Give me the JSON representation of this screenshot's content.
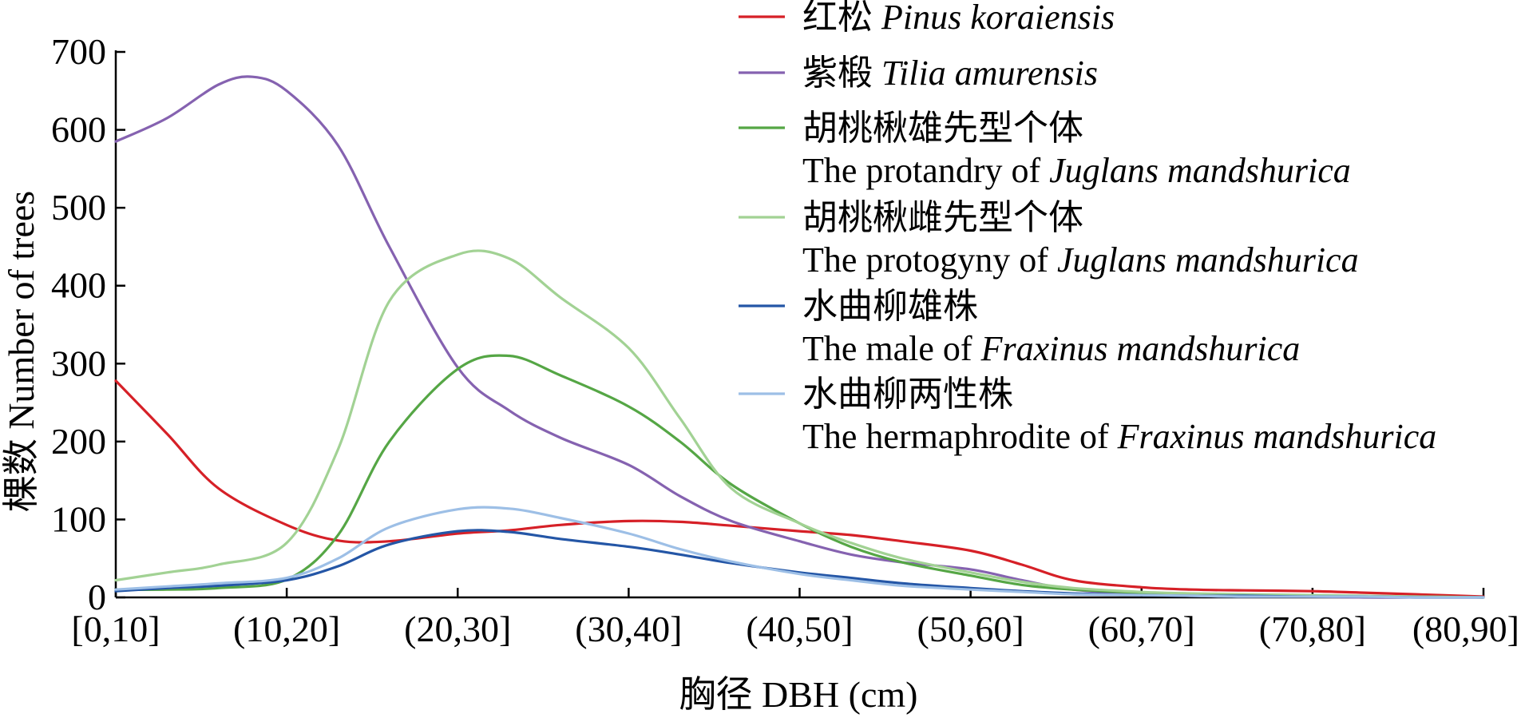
{
  "chart_data": {
    "type": "line",
    "xlabel": "胸径 DBH  (cm)",
    "ylabel": "棵数 Number of trees",
    "ylim": [
      0,
      700
    ],
    "yticks": [
      0,
      100,
      200,
      300,
      400,
      500,
      600,
      700
    ],
    "categories": [
      "[0,10]",
      "(10,20]",
      "(20,30]",
      "(30,40]",
      "(40,50]",
      "(50,60]",
      "(60,70]",
      "(70,80]",
      "(80,90]"
    ],
    "x_positions": [
      0,
      1,
      2,
      3,
      4,
      5,
      6,
      7,
      8
    ],
    "grid": false,
    "legend_position": "top-right",
    "series": [
      {
        "name_cn": "红松",
        "name_parts": [
          {
            "text": "Pinus koraiensis",
            "italic": true
          }
        ],
        "color": "#d62027",
        "x": [
          0,
          0.3,
          0.6,
          1.0,
          1.3,
          1.6,
          2.0,
          2.3,
          2.6,
          3.0,
          3.3,
          3.6,
          4.0,
          4.3,
          4.6,
          5.0,
          5.3,
          5.6,
          6.0,
          6.3,
          6.6,
          7.0,
          7.3,
          7.6,
          8.0
        ],
        "values": [
          278,
          210,
          140,
          93,
          73,
          72,
          82,
          86,
          93,
          98,
          97,
          92,
          85,
          80,
          72,
          60,
          42,
          22,
          13,
          10,
          9,
          8,
          6,
          4,
          1
        ]
      },
      {
        "name_cn": "紫椴",
        "name_parts": [
          {
            "text": "Tilia amurensis",
            "italic": true
          }
        ],
        "color": "#8562b0",
        "x": [
          0,
          0.3,
          0.6,
          0.8,
          1.0,
          1.3,
          1.6,
          2.0,
          2.3,
          2.6,
          3.0,
          3.3,
          3.6,
          4.0,
          4.3,
          4.6,
          5.0,
          5.3,
          5.6,
          6.0,
          6.3,
          6.6,
          7.0,
          7.3,
          7.6,
          8.0
        ],
        "values": [
          585,
          615,
          658,
          668,
          650,
          580,
          450,
          295,
          240,
          205,
          170,
          130,
          98,
          72,
          55,
          45,
          36,
          22,
          10,
          4,
          2,
          1,
          1,
          0,
          0,
          0
        ]
      },
      {
        "name_cn": "胡桃楸雄先型个体",
        "name_parts": [
          {
            "text": "The protandry of ",
            "italic": false
          },
          {
            "text": "Juglans mandshurica",
            "italic": true
          }
        ],
        "color": "#55a645",
        "x": [
          0,
          0.3,
          0.6,
          1.0,
          1.3,
          1.6,
          2.0,
          2.3,
          2.6,
          3.0,
          3.3,
          3.6,
          4.0,
          4.3,
          4.6,
          5.0,
          5.3,
          5.6,
          6.0,
          6.3,
          6.6,
          7.0,
          7.3,
          7.6,
          8.0
        ],
        "values": [
          10,
          10,
          12,
          23,
          80,
          200,
          293,
          310,
          285,
          245,
          200,
          145,
          95,
          65,
          45,
          28,
          16,
          10,
          6,
          4,
          3,
          2,
          1,
          1,
          0
        ]
      },
      {
        "name_cn": "胡桃楸雌先型个体",
        "name_parts": [
          {
            "text": "The protogyny of ",
            "italic": false
          },
          {
            "text": "Juglans mandshurica",
            "italic": true
          }
        ],
        "color": "#a2d294",
        "x": [
          0,
          0.3,
          0.6,
          1.0,
          1.3,
          1.6,
          2.0,
          2.3,
          2.6,
          3.0,
          3.3,
          3.6,
          4.0,
          4.3,
          4.6,
          5.0,
          5.3,
          5.6,
          6.0,
          6.3,
          6.6,
          7.0,
          7.3,
          7.6,
          8.0
        ],
        "values": [
          22,
          32,
          42,
          70,
          190,
          380,
          440,
          435,
          385,
          320,
          230,
          140,
          95,
          70,
          50,
          32,
          20,
          12,
          7,
          5,
          4,
          3,
          2,
          1,
          0
        ]
      },
      {
        "name_cn": "水曲柳雄株",
        "name_parts": [
          {
            "text": "The male of ",
            "italic": false
          },
          {
            "text": "Fraxinus mandshurica",
            "italic": true
          }
        ],
        "color": "#2456a6",
        "x": [
          0,
          0.3,
          0.6,
          1.0,
          1.3,
          1.6,
          2.0,
          2.3,
          2.6,
          3.0,
          3.3,
          3.6,
          4.0,
          4.3,
          4.6,
          5.0,
          5.3,
          5.6,
          6.0,
          6.3,
          6.6,
          7.0,
          7.3,
          7.6,
          8.0
        ],
        "values": [
          8,
          12,
          15,
          22,
          40,
          68,
          85,
          84,
          75,
          65,
          55,
          44,
          32,
          25,
          18,
          12,
          8,
          5,
          3,
          2,
          2,
          1,
          1,
          0,
          0
        ]
      },
      {
        "name_cn": "水曲柳两性株",
        "name_parts": [
          {
            "text": "The hermaphrodite of ",
            "italic": false
          },
          {
            "text": "Fraxinus mandshurica",
            "italic": true
          }
        ],
        "color": "#9dbfe6",
        "x": [
          0,
          0.3,
          0.6,
          1.0,
          1.3,
          1.6,
          2.0,
          2.3,
          2.6,
          3.0,
          3.3,
          3.6,
          4.0,
          4.3,
          4.6,
          5.0,
          5.3,
          5.6,
          6.0,
          6.3,
          6.6,
          7.0,
          7.3,
          7.6,
          8.0
        ],
        "values": [
          10,
          14,
          18,
          25,
          50,
          90,
          113,
          114,
          102,
          82,
          62,
          46,
          30,
          22,
          15,
          10,
          7,
          4,
          3,
          2,
          1,
          1,
          1,
          0,
          0
        ]
      }
    ]
  }
}
